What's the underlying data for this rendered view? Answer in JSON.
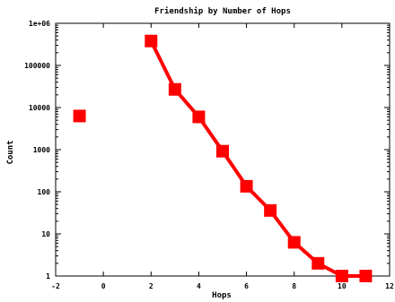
{
  "chart_data": {
    "type": "line",
    "title": "Friendship by Number of Hops",
    "xlabel": "Hops",
    "ylabel": "Count",
    "xlim": [
      -2,
      12
    ],
    "ylim": [
      1,
      1000000
    ],
    "yscale": "log",
    "grid": false,
    "x_ticks": [
      -2,
      0,
      2,
      4,
      6,
      8,
      10,
      12
    ],
    "x_tick_labels": [
      "-2",
      "0",
      "2",
      "4",
      "6",
      "8",
      "10",
      "12"
    ],
    "y_ticks": [
      1,
      10,
      100,
      1000,
      10000,
      100000,
      1000000
    ],
    "y_tick_labels": [
      "1",
      "10",
      "100",
      "1000",
      "10000",
      "100000",
      "1e+06"
    ],
    "series": [
      {
        "color": "#ff0000",
        "marker": "square",
        "points": [
          {
            "x": -1,
            "y": 6300
          },
          {
            "x": 2,
            "y": 380000
          },
          {
            "x": 3,
            "y": 27000
          },
          {
            "x": 4,
            "y": 6000
          },
          {
            "x": 5,
            "y": 920
          },
          {
            "x": 6,
            "y": 135
          },
          {
            "x": 7,
            "y": 36
          },
          {
            "x": 8,
            "y": 6.3
          },
          {
            "x": 9,
            "y": 2
          },
          {
            "x": 10,
            "y": 1
          },
          {
            "x": 11,
            "y": 1
          }
        ],
        "line_from_index": 1
      }
    ]
  }
}
